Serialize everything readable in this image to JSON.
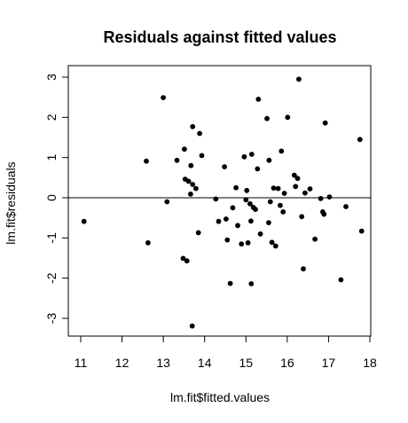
{
  "chart_data": {
    "type": "scatter",
    "title": "Residuals against fitted values",
    "xlabel": "lm.fit$fitted.values",
    "ylabel": "lm.fit$residuals",
    "xlim": [
      11,
      18
    ],
    "ylim": [
      -3.2,
      3.0
    ],
    "x_ticks": [
      11,
      12,
      13,
      14,
      15,
      16,
      17,
      18
    ],
    "y_ticks": [
      -3,
      -2,
      -1,
      0,
      1,
      2,
      3
    ],
    "reference_line_y": 0,
    "grid": false,
    "legend": "none",
    "point_color": "#000000",
    "series": [
      {
        "points": [
          [
            11.08,
            -0.59
          ],
          [
            12.59,
            0.91
          ],
          [
            12.63,
            -1.12
          ],
          [
            13.0,
            2.49
          ],
          [
            13.09,
            -0.1
          ],
          [
            13.33,
            0.93
          ],
          [
            13.48,
            -1.51
          ],
          [
            13.51,
            1.21
          ],
          [
            13.53,
            0.46
          ],
          [
            13.57,
            -1.57
          ],
          [
            13.61,
            0.41
          ],
          [
            13.66,
            0.09
          ],
          [
            13.67,
            0.8
          ],
          [
            13.71,
            1.77
          ],
          [
            13.7,
            -3.19
          ],
          [
            13.71,
            0.33
          ],
          [
            13.79,
            0.23
          ],
          [
            13.85,
            -0.87
          ],
          [
            13.88,
            1.6
          ],
          [
            13.93,
            1.05
          ],
          [
            14.27,
            -0.03
          ],
          [
            14.34,
            -0.59
          ],
          [
            14.48,
            0.77
          ],
          [
            14.52,
            -0.53
          ],
          [
            14.55,
            -1.05
          ],
          [
            14.62,
            -2.13
          ],
          [
            14.68,
            -0.25
          ],
          [
            14.76,
            0.25
          ],
          [
            14.8,
            -0.69
          ],
          [
            14.89,
            -1.15
          ],
          [
            14.96,
            1.02
          ],
          [
            15.0,
            -0.05
          ],
          [
            15.02,
            0.18
          ],
          [
            15.05,
            -1.12
          ],
          [
            15.1,
            -0.15
          ],
          [
            15.12,
            -0.58
          ],
          [
            15.14,
            1.08
          ],
          [
            15.13,
            -2.14
          ],
          [
            15.18,
            -0.24
          ],
          [
            15.23,
            -0.29
          ],
          [
            15.28,
            0.72
          ],
          [
            15.3,
            2.45
          ],
          [
            15.35,
            -0.9
          ],
          [
            15.51,
            1.97
          ],
          [
            15.55,
            -0.62
          ],
          [
            15.56,
            0.93
          ],
          [
            15.59,
            -0.1
          ],
          [
            15.63,
            -1.11
          ],
          [
            15.67,
            0.24
          ],
          [
            15.72,
            -1.2
          ],
          [
            15.78,
            0.23
          ],
          [
            15.83,
            -0.19
          ],
          [
            15.86,
            1.16
          ],
          [
            15.9,
            -0.35
          ],
          [
            15.93,
            0.11
          ],
          [
            16.01,
            2.0
          ],
          [
            16.17,
            0.56
          ],
          [
            16.2,
            0.28
          ],
          [
            16.25,
            0.48
          ],
          [
            16.28,
            2.95
          ],
          [
            16.35,
            -0.47
          ],
          [
            16.39,
            -1.77
          ],
          [
            16.43,
            0.12
          ],
          [
            16.55,
            0.22
          ],
          [
            16.67,
            -1.03
          ],
          [
            16.81,
            -0.02
          ],
          [
            16.86,
            -0.35
          ],
          [
            16.89,
            -0.41
          ],
          [
            16.92,
            1.86
          ],
          [
            17.02,
            0.02
          ],
          [
            17.3,
            -2.04
          ],
          [
            17.42,
            -0.22
          ],
          [
            17.76,
            1.45
          ],
          [
            17.8,
            -0.83
          ]
        ]
      }
    ]
  }
}
